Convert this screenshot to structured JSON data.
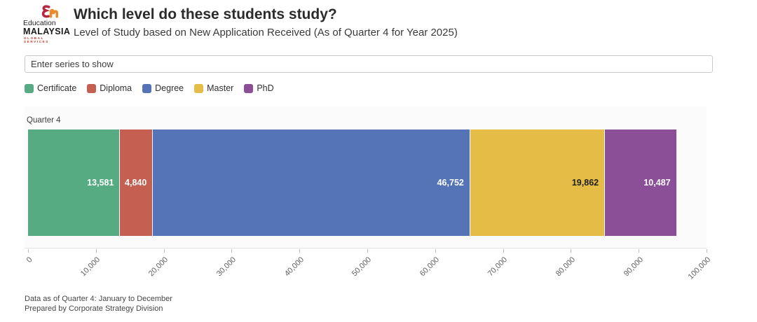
{
  "header": {
    "logo": {
      "top_text": "Education",
      "main_text": "MALAYSIA",
      "sub_text": "GLOBAL SERVICES"
    },
    "title": "Which level do these students study?",
    "subtitle": "Level of Study based on New Application Received (As of Quarter 4 for Year 2025)"
  },
  "filter_input": {
    "placeholder": "Enter series to show",
    "value": ""
  },
  "chart_data": {
    "type": "bar",
    "variant": "horizontal-stacked",
    "bar_label": "Quarter 4",
    "categories": [
      "Certificate",
      "Diploma",
      "Degree",
      "Master",
      "PhD"
    ],
    "series": [
      {
        "name": "Certificate",
        "value": 13581,
        "label": "13,581",
        "color": "#57ab82",
        "label_color": "#ffffff"
      },
      {
        "name": "Diploma",
        "value": 4840,
        "label": "4,840",
        "color": "#c45f51",
        "label_color": "#ffffff"
      },
      {
        "name": "Degree",
        "value": 46752,
        "label": "46,752",
        "color": "#5574b8",
        "label_color": "#ffffff"
      },
      {
        "name": "Master",
        "value": 19862,
        "label": "19,862",
        "color": "#e5bc45",
        "label_color": "#1f1f1f"
      },
      {
        "name": "PhD",
        "value": 10487,
        "label": "10,487",
        "color": "#8a4f97",
        "label_color": "#ffffff"
      }
    ],
    "total": 95522,
    "xlim": [
      0,
      100000
    ],
    "x_ticks": [
      {
        "value": 0,
        "label": "0"
      },
      {
        "value": 10000,
        "label": "10,000"
      },
      {
        "value": 20000,
        "label": "20,000"
      },
      {
        "value": 30000,
        "label": "30,000"
      },
      {
        "value": 40000,
        "label": "40,000"
      },
      {
        "value": 50000,
        "label": "50,000"
      },
      {
        "value": 60000,
        "label": "60,000"
      },
      {
        "value": 70000,
        "label": "70,000"
      },
      {
        "value": 80000,
        "label": "80,000"
      },
      {
        "value": 90000,
        "label": "90,000"
      },
      {
        "value": 100000,
        "label": "100,000"
      }
    ],
    "legend_position": "top-left",
    "grid": false,
    "plot_background": "#fcfbfc"
  },
  "footer": {
    "line1": "Data as of Quarter 4: January to December",
    "line2": "Prepared by Corporate Strategy Division"
  }
}
